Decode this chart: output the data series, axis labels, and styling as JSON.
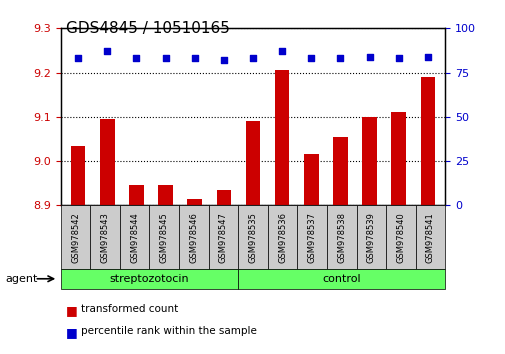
{
  "title": "GDS4845 / 10510165",
  "samples": [
    "GSM978542",
    "GSM978543",
    "GSM978544",
    "GSM978545",
    "GSM978546",
    "GSM978547",
    "GSM978535",
    "GSM978536",
    "GSM978537",
    "GSM978538",
    "GSM978539",
    "GSM978540",
    "GSM978541"
  ],
  "red_values": [
    9.035,
    9.095,
    8.945,
    8.945,
    8.915,
    8.935,
    9.09,
    9.205,
    9.015,
    9.055,
    9.1,
    9.11,
    9.19
  ],
  "blue_values": [
    83,
    87,
    83,
    83,
    83,
    82,
    83,
    87,
    83,
    83,
    84,
    83,
    84
  ],
  "group1_label": "streptozotocin",
  "group2_label": "control",
  "group1_count": 6,
  "group2_count": 7,
  "agent_label": "agent",
  "legend_red": "transformed count",
  "legend_blue": "percentile rank within the sample",
  "ylim_left": [
    8.9,
    9.3
  ],
  "ylim_right": [
    0,
    100
  ],
  "yticks_left": [
    8.9,
    9.0,
    9.1,
    9.2,
    9.3
  ],
  "yticks_right": [
    0,
    25,
    50,
    75,
    100
  ],
  "bar_color": "#cc0000",
  "dot_color": "#0000cc",
  "group_color": "#66ff66",
  "bg_color": "#ffffff",
  "tick_area_color": "#cccccc",
  "title_fontsize": 11,
  "tick_fontsize": 8,
  "label_fontsize": 8
}
